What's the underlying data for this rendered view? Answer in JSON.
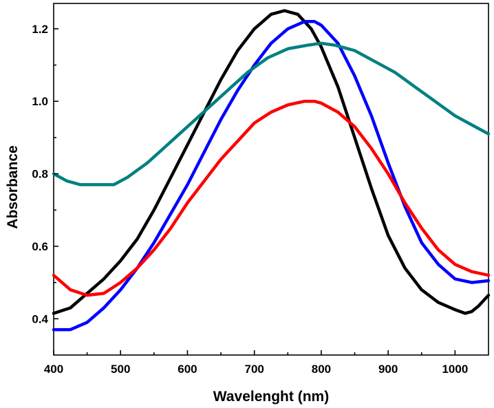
{
  "chart_data": {
    "type": "line",
    "title": "",
    "xlabel": "Wavelenght (nm)",
    "ylabel": "Absorbance",
    "xlim": [
      400,
      1050
    ],
    "ylim": [
      0.3,
      1.27
    ],
    "xticks": [
      400,
      500,
      600,
      700,
      800,
      900,
      1000
    ],
    "xtick_labels": [
      "400",
      "500",
      "600",
      "700",
      "800",
      "900",
      "1000"
    ],
    "yticks": [
      0.4,
      0.6,
      0.8,
      1.0,
      1.2
    ],
    "ytick_labels": [
      "0.4",
      "0.6",
      "0.8",
      "1.0",
      "1.2"
    ],
    "grid": false,
    "legend": "none",
    "series": [
      {
        "color": "#000000",
        "x": [
          400,
          425,
          450,
          475,
          500,
          525,
          550,
          575,
          600,
          625,
          650,
          675,
          700,
          725,
          745,
          765,
          785,
          800,
          825,
          850,
          875,
          900,
          925,
          950,
          975,
          1000,
          1015,
          1025,
          1035,
          1050
        ],
        "y": [
          0.415,
          0.43,
          0.47,
          0.51,
          0.56,
          0.62,
          0.7,
          0.79,
          0.88,
          0.97,
          1.06,
          1.14,
          1.2,
          1.24,
          1.25,
          1.24,
          1.2,
          1.15,
          1.04,
          0.9,
          0.76,
          0.63,
          0.54,
          0.48,
          0.445,
          0.425,
          0.415,
          0.42,
          0.435,
          0.465
        ]
      },
      {
        "color": "#0000ff",
        "x": [
          400,
          425,
          450,
          475,
          500,
          525,
          550,
          575,
          600,
          625,
          650,
          675,
          700,
          725,
          750,
          775,
          790,
          800,
          825,
          850,
          875,
          900,
          925,
          950,
          975,
          1000,
          1025,
          1050
        ],
        "y": [
          0.37,
          0.37,
          0.39,
          0.43,
          0.48,
          0.54,
          0.61,
          0.69,
          0.77,
          0.86,
          0.95,
          1.03,
          1.1,
          1.16,
          1.2,
          1.22,
          1.22,
          1.21,
          1.16,
          1.07,
          0.96,
          0.83,
          0.71,
          0.61,
          0.55,
          0.51,
          0.5,
          0.505
        ]
      },
      {
        "color": "#ff0000",
        "x": [
          400,
          425,
          450,
          475,
          500,
          525,
          550,
          575,
          600,
          625,
          650,
          675,
          700,
          725,
          750,
          775,
          790,
          800,
          825,
          850,
          875,
          900,
          925,
          950,
          975,
          1000,
          1025,
          1050
        ],
        "y": [
          0.52,
          0.48,
          0.465,
          0.47,
          0.5,
          0.54,
          0.59,
          0.65,
          0.72,
          0.78,
          0.84,
          0.89,
          0.94,
          0.97,
          0.99,
          1.0,
          1.0,
          0.995,
          0.97,
          0.93,
          0.87,
          0.8,
          0.72,
          0.65,
          0.59,
          0.55,
          0.53,
          0.52
        ]
      },
      {
        "color": "#008080",
        "x": [
          400,
          420,
          440,
          460,
          490,
          510,
          540,
          570,
          600,
          630,
          660,
          690,
          720,
          750,
          780,
          800,
          820,
          850,
          880,
          910,
          940,
          970,
          1000,
          1025,
          1050
        ],
        "y": [
          0.8,
          0.78,
          0.77,
          0.77,
          0.77,
          0.79,
          0.83,
          0.88,
          0.93,
          0.98,
          1.03,
          1.08,
          1.12,
          1.145,
          1.155,
          1.16,
          1.155,
          1.14,
          1.11,
          1.08,
          1.04,
          1.0,
          0.96,
          0.935,
          0.91
        ]
      }
    ]
  }
}
